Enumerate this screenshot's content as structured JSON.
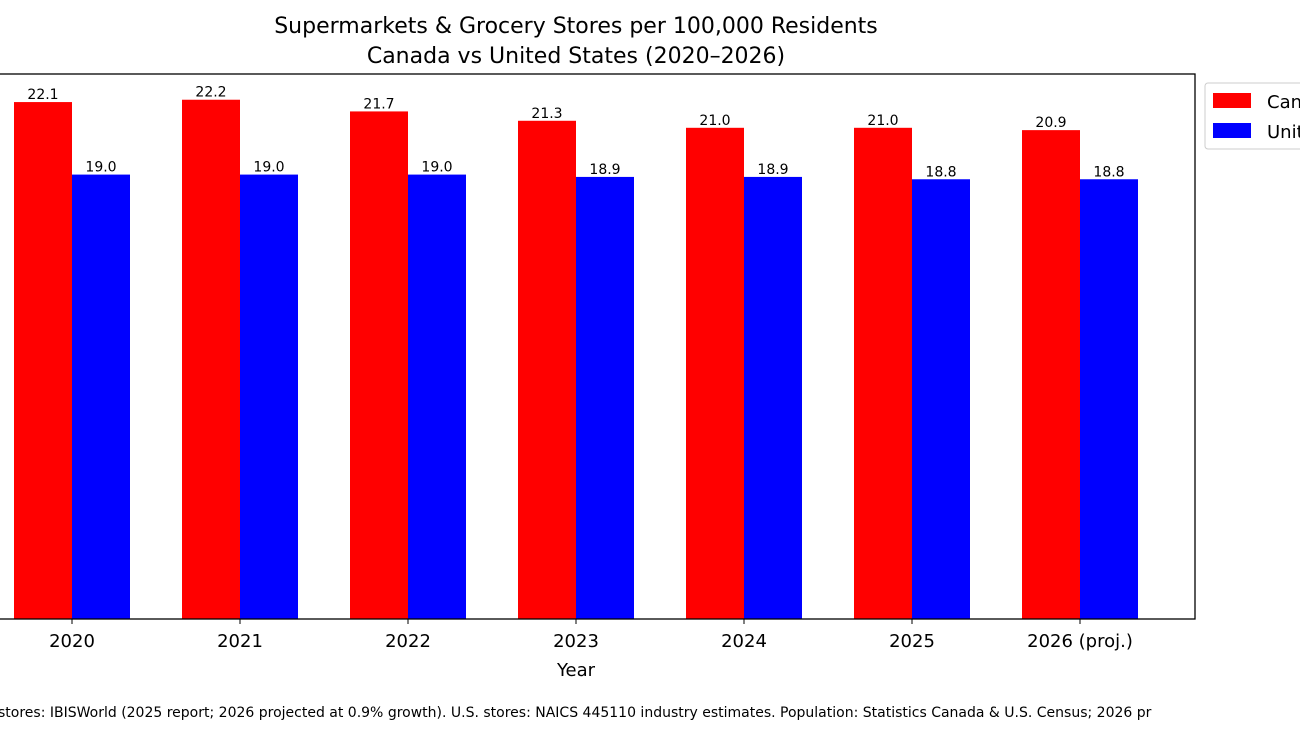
{
  "chart_data": {
    "type": "bar",
    "title": "Supermarkets & Grocery Stores per 100,000 Residents",
    "subtitle": "Canada vs United States (2020–2026)",
    "xlabel": "Year",
    "ylabel": "",
    "categories": [
      "2020",
      "2021",
      "2022",
      "2023",
      "2024",
      "2025",
      "2026 (proj.)"
    ],
    "series": [
      {
        "name": "Canada",
        "color": "#ff0000",
        "values": [
          22.1,
          22.2,
          21.7,
          21.3,
          21.0,
          21.0,
          20.9
        ],
        "labels": [
          "22.1",
          "22.2",
          "21.7",
          "21.3",
          "21.0",
          "21.0",
          "20.9"
        ]
      },
      {
        "name": "United States",
        "color": "#0000ff",
        "values": [
          19.0,
          19.0,
          19.0,
          18.9,
          18.9,
          18.8,
          18.8
        ],
        "labels": [
          "19.0",
          "19.0",
          "19.0",
          "18.9",
          "18.9",
          "18.8",
          "18.8"
        ]
      }
    ],
    "ylim": [
      0,
      23.3
    ],
    "grid": false,
    "legend_position": "outside-top-right",
    "footnote": "stores: IBISWorld (2025 report; 2026 projected at 0.9% growth). U.S. stores: NAICS 445110 industry estimates. Population: Statistics Canada & U.S. Census; 2026 pr"
  }
}
